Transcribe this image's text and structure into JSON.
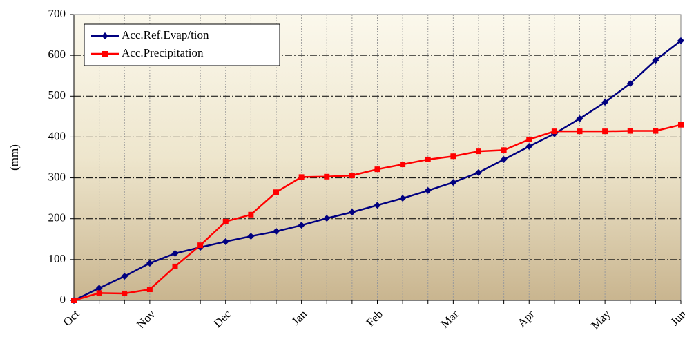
{
  "chart_data": {
    "type": "line",
    "y_label": "(mm)",
    "categories": [
      "Oct",
      null,
      null,
      "Nov",
      null,
      null,
      "Dec",
      null,
      null,
      "Jan",
      null,
      null,
      "Feb",
      null,
      null,
      "Mar",
      null,
      null,
      "Apr",
      null,
      null,
      "May",
      null,
      null,
      "Jun"
    ],
    "series": [
      {
        "name": "Acc.Ref.Evap/tion",
        "color": "#000080",
        "marker": "diamond",
        "values": [
          0,
          30,
          59,
          91,
          115,
          130,
          144,
          157,
          169,
          184,
          201,
          216,
          233,
          250,
          269,
          289,
          313,
          345,
          377,
          408,
          445,
          485,
          531,
          588,
          636
        ]
      },
      {
        "name": "Acc.Precipitation",
        "color": "#ff0000",
        "marker": "square",
        "values": [
          0,
          18,
          17,
          27,
          83,
          135,
          193,
          210,
          265,
          302,
          303,
          306,
          321,
          333,
          345,
          353,
          365,
          368,
          394,
          414,
          414,
          414,
          415,
          415,
          430
        ]
      }
    ],
    "ylim": [
      0,
      700
    ],
    "yticks": [
      0,
      100,
      200,
      300,
      400,
      500,
      600,
      700
    ],
    "grid": true,
    "legend": "upper left"
  }
}
